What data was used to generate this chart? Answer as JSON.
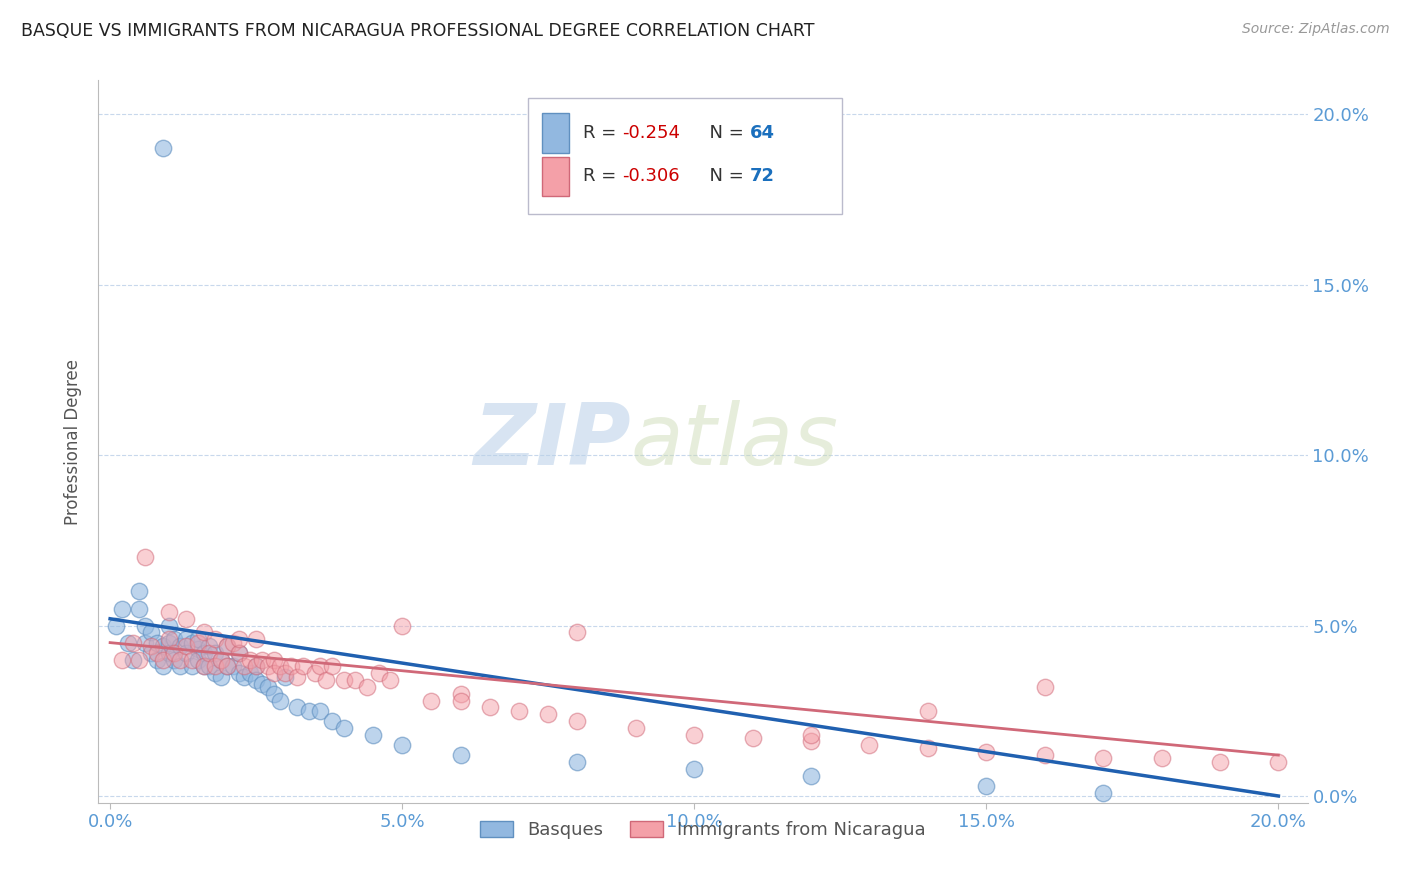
{
  "title": "BASQUE VS IMMIGRANTS FROM NICARAGUA PROFESSIONAL DEGREE CORRELATION CHART",
  "source": "Source: ZipAtlas.com",
  "ylabel": "Professional Degree",
  "ytick_values": [
    0.0,
    0.05,
    0.1,
    0.15,
    0.2
  ],
  "xtick_values": [
    0.0,
    0.05,
    0.1,
    0.15,
    0.2
  ],
  "xlim": [
    -0.002,
    0.205
  ],
  "ylim": [
    -0.002,
    0.21
  ],
  "legend_labels": [
    "Basques",
    "Immigrants from Nicaragua"
  ],
  "blue_color": "#92b8e0",
  "pink_color": "#f4a0a8",
  "blue_edge_color": "#6090c0",
  "pink_edge_color": "#d06878",
  "blue_line_color": "#2060b0",
  "pink_line_color": "#d06878",
  "watermark_zip": "ZIP",
  "watermark_atlas": "atlas",
  "tick_color": "#5b9bd5",
  "blue_scatter_x": [
    0.001,
    0.002,
    0.003,
    0.004,
    0.005,
    0.005,
    0.006,
    0.006,
    0.007,
    0.007,
    0.008,
    0.008,
    0.009,
    0.009,
    0.009,
    0.01,
    0.01,
    0.01,
    0.011,
    0.011,
    0.012,
    0.012,
    0.013,
    0.013,
    0.014,
    0.014,
    0.015,
    0.015,
    0.015,
    0.016,
    0.016,
    0.017,
    0.017,
    0.018,
    0.018,
    0.019,
    0.019,
    0.02,
    0.02,
    0.021,
    0.022,
    0.022,
    0.023,
    0.024,
    0.025,
    0.025,
    0.026,
    0.027,
    0.028,
    0.029,
    0.03,
    0.032,
    0.034,
    0.036,
    0.038,
    0.04,
    0.045,
    0.05,
    0.06,
    0.08,
    0.1,
    0.12,
    0.15,
    0.17
  ],
  "blue_scatter_y": [
    0.05,
    0.055,
    0.045,
    0.04,
    0.06,
    0.055,
    0.05,
    0.045,
    0.048,
    0.042,
    0.045,
    0.04,
    0.044,
    0.038,
    0.19,
    0.05,
    0.045,
    0.042,
    0.046,
    0.04,
    0.044,
    0.038,
    0.046,
    0.042,
    0.045,
    0.038,
    0.043,
    0.04,
    0.046,
    0.042,
    0.038,
    0.044,
    0.038,
    0.042,
    0.036,
    0.04,
    0.035,
    0.038,
    0.044,
    0.038,
    0.036,
    0.042,
    0.035,
    0.036,
    0.038,
    0.034,
    0.033,
    0.032,
    0.03,
    0.028,
    0.035,
    0.026,
    0.025,
    0.025,
    0.022,
    0.02,
    0.018,
    0.015,
    0.012,
    0.01,
    0.008,
    0.006,
    0.003,
    0.001
  ],
  "pink_scatter_x": [
    0.002,
    0.004,
    0.005,
    0.006,
    0.007,
    0.008,
    0.009,
    0.01,
    0.01,
    0.011,
    0.012,
    0.013,
    0.013,
    0.014,
    0.015,
    0.016,
    0.016,
    0.017,
    0.018,
    0.018,
    0.019,
    0.02,
    0.02,
    0.021,
    0.022,
    0.022,
    0.023,
    0.024,
    0.025,
    0.025,
    0.026,
    0.027,
    0.028,
    0.028,
    0.029,
    0.03,
    0.031,
    0.032,
    0.033,
    0.035,
    0.036,
    0.037,
    0.038,
    0.04,
    0.042,
    0.044,
    0.046,
    0.048,
    0.05,
    0.055,
    0.06,
    0.065,
    0.07,
    0.075,
    0.08,
    0.09,
    0.1,
    0.11,
    0.12,
    0.13,
    0.14,
    0.15,
    0.16,
    0.17,
    0.18,
    0.19,
    0.2,
    0.16,
    0.14,
    0.12,
    0.08,
    0.06
  ],
  "pink_scatter_y": [
    0.04,
    0.045,
    0.04,
    0.07,
    0.044,
    0.042,
    0.04,
    0.046,
    0.054,
    0.042,
    0.04,
    0.044,
    0.052,
    0.04,
    0.045,
    0.048,
    0.038,
    0.042,
    0.046,
    0.038,
    0.04,
    0.044,
    0.038,
    0.045,
    0.042,
    0.046,
    0.038,
    0.04,
    0.046,
    0.038,
    0.04,
    0.038,
    0.04,
    0.036,
    0.038,
    0.036,
    0.038,
    0.035,
    0.038,
    0.036,
    0.038,
    0.034,
    0.038,
    0.034,
    0.034,
    0.032,
    0.036,
    0.034,
    0.05,
    0.028,
    0.03,
    0.026,
    0.025,
    0.024,
    0.022,
    0.02,
    0.018,
    0.017,
    0.016,
    0.015,
    0.014,
    0.013,
    0.012,
    0.011,
    0.011,
    0.01,
    0.01,
    0.032,
    0.025,
    0.018,
    0.048,
    0.028
  ]
}
